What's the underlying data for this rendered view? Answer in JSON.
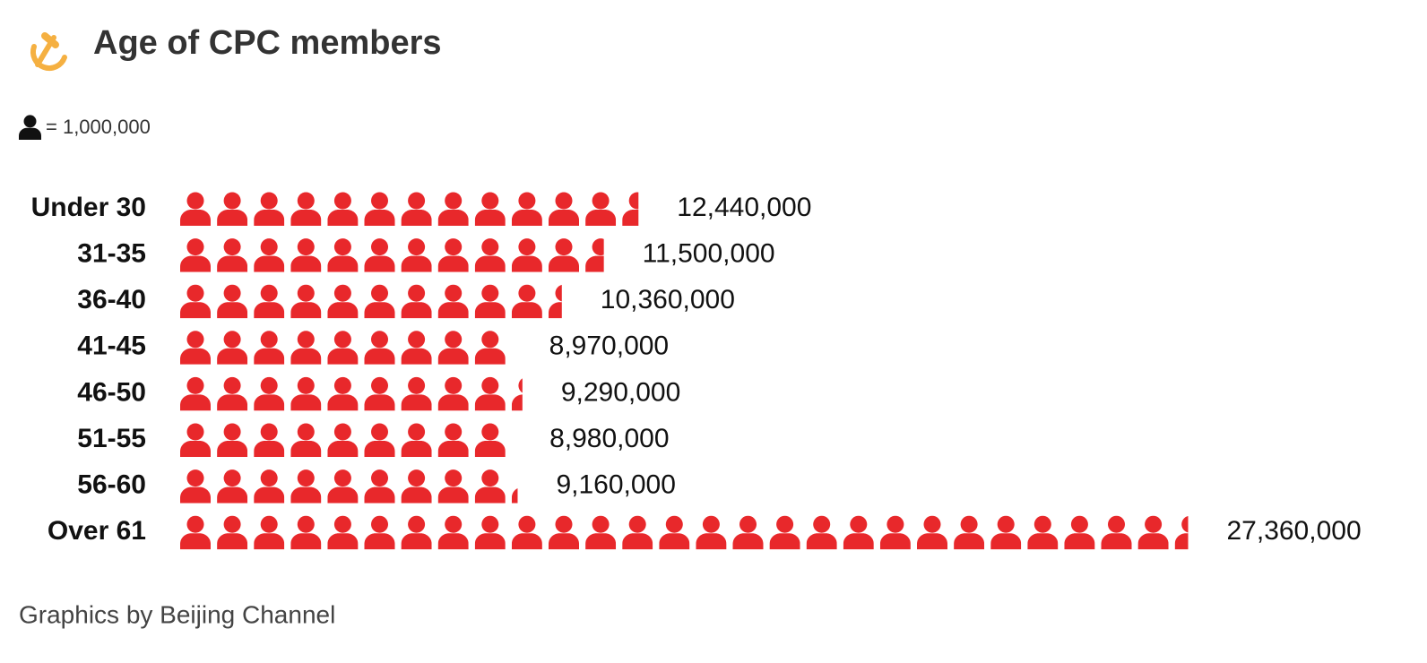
{
  "chart_data": {
    "type": "pictogram",
    "title": "Age of CPC members",
    "unit": {
      "value": 1000000,
      "label": "= 1,000,000"
    },
    "categories": [
      "Under 30",
      "31-35",
      "36-40",
      "41-45",
      "46-50",
      "51-55",
      "56-60",
      "Over 61"
    ],
    "values": [
      12440000,
      11500000,
      10360000,
      8970000,
      9290000,
      8980000,
      9160000,
      27360000
    ],
    "value_labels": [
      "12,440,000",
      "11,500,000",
      "10,360,000",
      "8,970,000",
      "9,290,000",
      "8,980,000",
      "9,160,000",
      "27,360,000"
    ],
    "color": "#e8282b",
    "source": "Graphics by Beijing Channel"
  }
}
